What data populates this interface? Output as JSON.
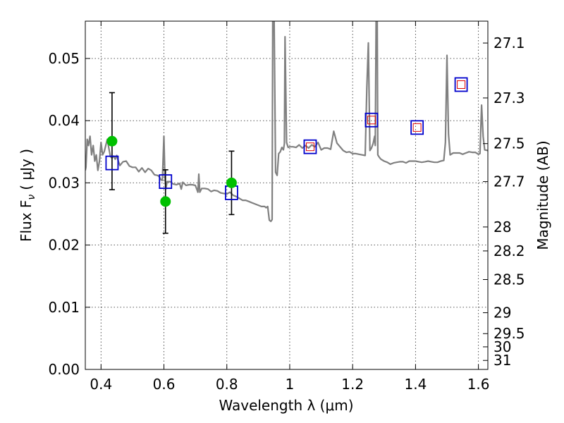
{
  "chart_data": {
    "type": "line",
    "xlabel": "Wavelength  λ (μm)",
    "ylabel": "Flux  F",
    "ylabel_sub": "ν",
    "ylabel_unit": "( μJy )",
    "ylabel_right": "Magnitude (AB)",
    "xlim": [
      0.35,
      1.63
    ],
    "ylim": [
      0.0,
      0.056
    ],
    "grid": true,
    "x_ticks": [
      {
        "value": 0.4,
        "label": "0.4"
      },
      {
        "value": 0.6,
        "label": "0.6"
      },
      {
        "value": 0.8,
        "label": "0.8"
      },
      {
        "value": 1.0,
        "label": "1"
      },
      {
        "value": 1.2,
        "label": "1.2"
      },
      {
        "value": 1.4,
        "label": "1.4"
      },
      {
        "value": 1.6,
        "label": "1.6"
      }
    ],
    "y_ticks": [
      {
        "value": 0.0,
        "label": "0.00"
      },
      {
        "value": 0.01,
        "label": "0.01"
      },
      {
        "value": 0.02,
        "label": "0.02"
      },
      {
        "value": 0.03,
        "label": "0.03"
      },
      {
        "value": 0.04,
        "label": "0.04"
      },
      {
        "value": 0.05,
        "label": "0.05"
      }
    ],
    "right_ticks": [
      {
        "mag": 27.1,
        "label": "27.1"
      },
      {
        "mag": 27.3,
        "label": "27.3"
      },
      {
        "mag": 27.5,
        "label": "27.5"
      },
      {
        "mag": 27.7,
        "label": "27.7"
      },
      {
        "mag": 28.0,
        "label": "28"
      },
      {
        "mag": 28.2,
        "label": "28.2"
      },
      {
        "mag": 28.5,
        "label": "28.5"
      },
      {
        "mag": 29.0,
        "label": "29"
      },
      {
        "mag": 29.5,
        "label": "29.5"
      },
      {
        "mag": 30.0,
        "label": "30"
      },
      {
        "mag": 31.0,
        "label": "31"
      }
    ],
    "colors": {
      "spectrum": "#808080",
      "observed": "#00c000",
      "model_box": "#0000cc",
      "model_inner": "#dd0000",
      "errorbar": "#000000"
    },
    "series": [
      {
        "kind": "spectrum",
        "x": [
          0.35,
          0.352,
          0.356,
          0.36,
          0.365,
          0.37,
          0.375,
          0.38,
          0.385,
          0.39,
          0.395,
          0.4,
          0.405,
          0.41,
          0.415,
          0.42,
          0.425,
          0.43,
          0.435,
          0.44,
          0.445,
          0.45,
          0.455,
          0.46,
          0.47,
          0.48,
          0.49,
          0.5,
          0.51,
          0.52,
          0.53,
          0.54,
          0.55,
          0.56,
          0.57,
          0.58,
          0.585,
          0.59,
          0.595,
          0.6,
          0.603,
          0.606,
          0.61,
          0.62,
          0.63,
          0.64,
          0.65,
          0.655,
          0.66,
          0.67,
          0.68,
          0.69,
          0.7,
          0.708,
          0.711,
          0.714,
          0.72,
          0.73,
          0.74,
          0.75,
          0.76,
          0.77,
          0.78,
          0.79,
          0.8,
          0.81,
          0.82,
          0.83,
          0.84,
          0.85,
          0.86,
          0.87,
          0.88,
          0.89,
          0.9,
          0.91,
          0.92,
          0.925,
          0.93,
          0.935,
          0.94,
          0.944,
          0.946,
          0.95,
          0.955,
          0.96,
          0.965,
          0.97,
          0.975,
          0.98,
          0.983,
          0.985,
          0.987,
          0.99,
          0.995,
          1.0,
          1.01,
          1.02,
          1.03,
          1.04,
          1.05,
          1.06,
          1.07,
          1.08,
          1.09,
          1.1,
          1.11,
          1.12,
          1.13,
          1.14,
          1.15,
          1.16,
          1.17,
          1.18,
          1.19,
          1.2,
          1.21,
          1.22,
          1.23,
          1.24,
          1.245,
          1.25,
          1.255,
          1.26,
          1.265,
          1.27,
          1.272,
          1.275,
          1.278,
          1.28,
          1.285,
          1.29,
          1.3,
          1.31,
          1.32,
          1.33,
          1.34,
          1.35,
          1.36,
          1.37,
          1.38,
          1.39,
          1.4,
          1.41,
          1.42,
          1.43,
          1.44,
          1.45,
          1.46,
          1.47,
          1.48,
          1.49,
          1.495,
          1.5,
          1.505,
          1.51,
          1.52,
          1.53,
          1.54,
          1.55,
          1.56,
          1.57,
          1.58,
          1.59,
          1.6,
          1.605,
          1.61,
          1.615,
          1.62,
          1.63
        ],
        "y": [
          0.032,
          0.0325,
          0.037,
          0.036,
          0.0375,
          0.0345,
          0.036,
          0.0335,
          0.0345,
          0.032,
          0.0335,
          0.0365,
          0.0345,
          0.035,
          0.036,
          0.037,
          0.0355,
          0.0342,
          0.034,
          0.0343,
          0.0338,
          0.0344,
          0.0335,
          0.0328,
          0.0334,
          0.0335,
          0.0327,
          0.0325,
          0.0325,
          0.0318,
          0.0324,
          0.0317,
          0.0323,
          0.032,
          0.0313,
          0.0312,
          0.031,
          0.0305,
          0.0304,
          0.0375,
          0.031,
          0.029,
          0.0302,
          0.0302,
          0.0298,
          0.0297,
          0.0299,
          0.029,
          0.0301,
          0.0296,
          0.0297,
          0.0297,
          0.0296,
          0.0285,
          0.0314,
          0.0285,
          0.0291,
          0.0291,
          0.029,
          0.0286,
          0.0288,
          0.0287,
          0.0284,
          0.0283,
          0.0282,
          0.0285,
          0.028,
          0.0278,
          0.0275,
          0.0272,
          0.0272,
          0.027,
          0.0268,
          0.0266,
          0.0264,
          0.0262,
          0.0262,
          0.026,
          0.0262,
          0.024,
          0.0238,
          0.0241,
          0.058,
          0.058,
          0.0317,
          0.0312,
          0.0347,
          0.035,
          0.0357,
          0.0353,
          0.0363,
          0.0535,
          0.0465,
          0.0365,
          0.0357,
          0.0358,
          0.0358,
          0.0357,
          0.0361,
          0.0356,
          0.036,
          0.0356,
          0.0361,
          0.0358,
          0.0365,
          0.0353,
          0.0356,
          0.0356,
          0.0354,
          0.0383,
          0.0364,
          0.0358,
          0.0352,
          0.0349,
          0.035,
          0.0347,
          0.0347,
          0.0346,
          0.0345,
          0.0344,
          0.0452,
          0.0525,
          0.0352,
          0.0356,
          0.0363,
          0.0375,
          0.036,
          0.058,
          0.058,
          0.0345,
          0.0341,
          0.0338,
          0.0335,
          0.0333,
          0.033,
          0.0332,
          0.0333,
          0.0334,
          0.0334,
          0.0332,
          0.0335,
          0.0335,
          0.0335,
          0.0334,
          0.0333,
          0.0334,
          0.0335,
          0.0334,
          0.0333,
          0.0333,
          0.0335,
          0.0336,
          0.0365,
          0.0505,
          0.0378,
          0.0345,
          0.0348,
          0.0348,
          0.0348,
          0.0346,
          0.0348,
          0.035,
          0.0349,
          0.0349,
          0.0346,
          0.0347,
          0.0425,
          0.0375,
          0.0353,
          0.0352
        ]
      },
      {
        "kind": "model_photometry",
        "x": [
          0.435,
          0.605,
          0.815,
          1.065,
          1.26,
          1.405,
          1.545
        ],
        "y": [
          0.0332,
          0.0302,
          0.0284,
          0.0358,
          0.0401,
          0.0389,
          0.0458
        ]
      },
      {
        "kind": "observed_photometry",
        "x": [
          0.435,
          0.605,
          0.815
        ],
        "y": [
          0.0367,
          0.027,
          0.03
        ],
        "err_low": [
          0.0078,
          0.0051,
          0.0051
        ],
        "err_high": [
          0.0078,
          0.0051,
          0.0051
        ]
      }
    ]
  }
}
